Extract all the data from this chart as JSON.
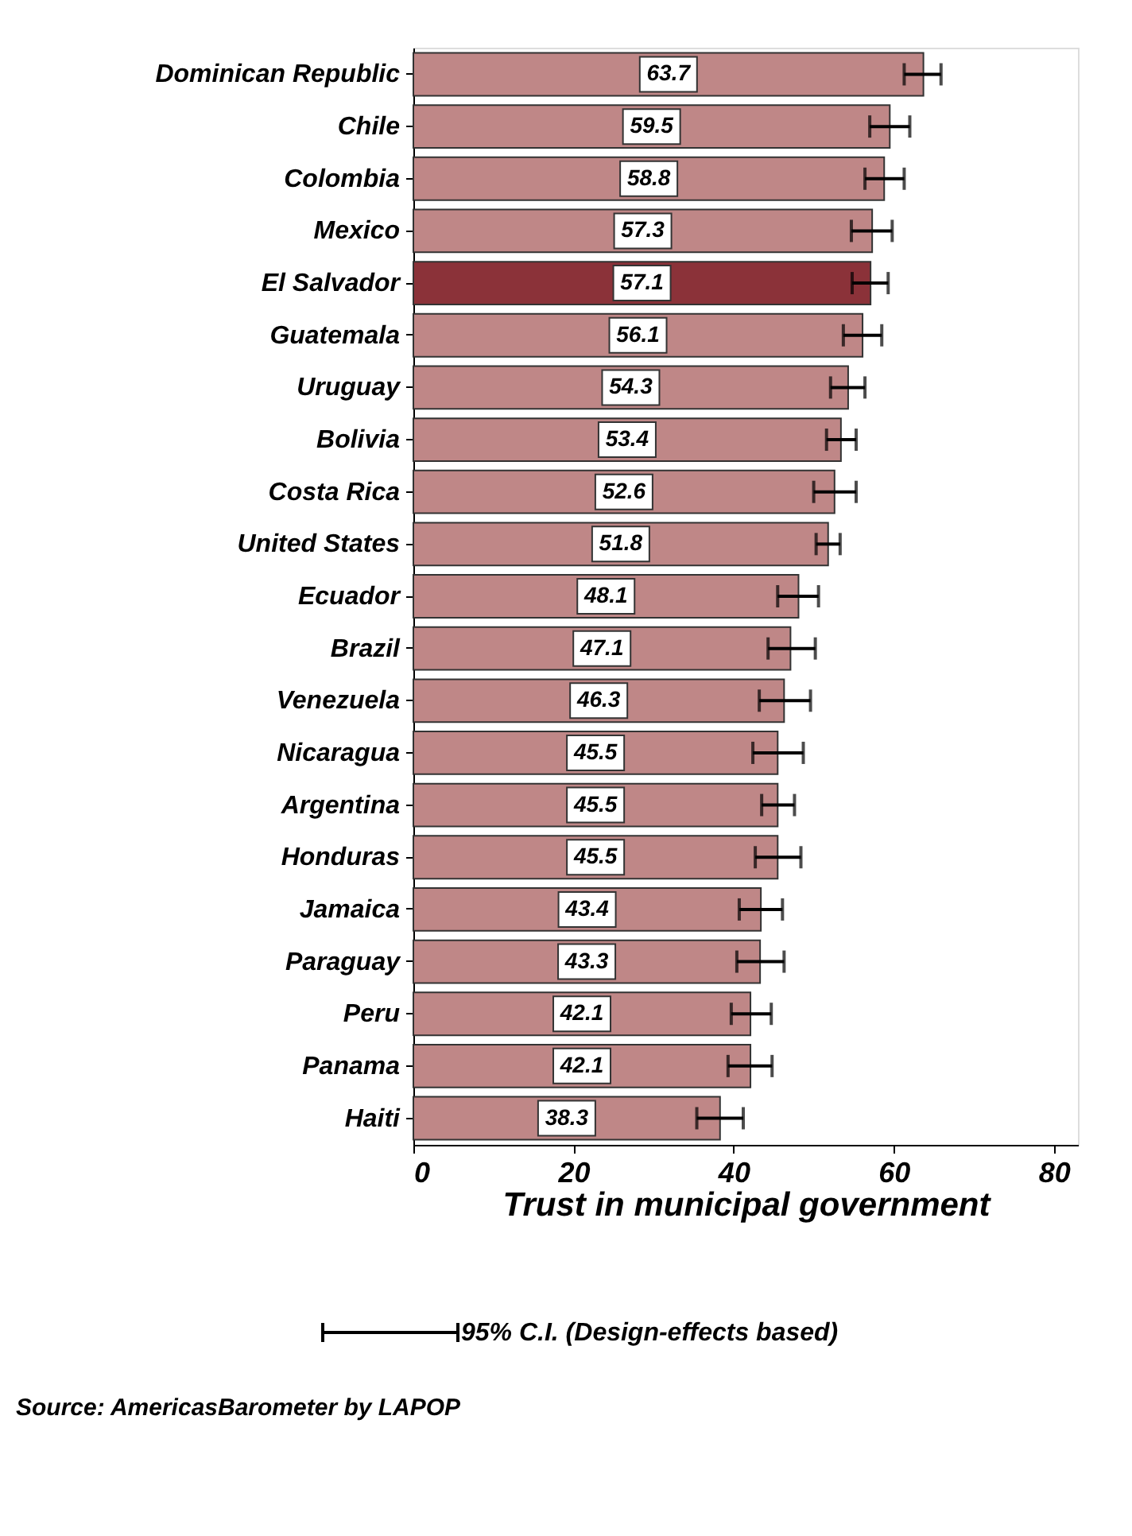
{
  "chart_data": {
    "type": "bar",
    "orientation": "horizontal",
    "xlabel": "Trust in municipal government",
    "categories": [
      "Dominican Republic",
      "Chile",
      "Colombia",
      "Mexico",
      "El Salvador",
      "Guatemala",
      "Uruguay",
      "Bolivia",
      "Costa Rica",
      "United States",
      "Ecuador",
      "Brazil",
      "Venezuela",
      "Nicaragua",
      "Argentina",
      "Honduras",
      "Jamaica",
      "Paraguay",
      "Peru",
      "Panama",
      "Haiti"
    ],
    "values": [
      63.7,
      59.5,
      58.8,
      57.3,
      57.1,
      56.1,
      54.3,
      53.4,
      52.6,
      51.8,
      48.1,
      47.1,
      46.3,
      45.5,
      45.5,
      45.5,
      43.4,
      43.3,
      42.1,
      42.1,
      38.3
    ],
    "errors": [
      [
        61.3,
        65.9
      ],
      [
        57.0,
        62.0
      ],
      [
        56.4,
        61.3
      ],
      [
        54.7,
        59.8
      ],
      [
        54.8,
        59.3
      ],
      [
        53.7,
        58.5
      ],
      [
        52.1,
        56.4
      ],
      [
        51.6,
        55.3
      ],
      [
        50.0,
        55.3
      ],
      [
        50.3,
        53.3
      ],
      [
        45.5,
        50.6
      ],
      [
        44.3,
        50.2
      ],
      [
        43.2,
        49.6
      ],
      [
        42.4,
        48.7
      ],
      [
        43.5,
        47.6
      ],
      [
        42.7,
        48.4
      ],
      [
        40.7,
        46.1
      ],
      [
        40.4,
        46.3
      ],
      [
        39.7,
        44.7
      ],
      [
        39.3,
        44.8
      ],
      [
        35.4,
        41.2
      ]
    ],
    "colors": [
      "#bf8787",
      "#bf8787",
      "#bf8787",
      "#bf8787",
      "#8b3239",
      "#bf8787",
      "#bf8787",
      "#bf8787",
      "#bf8787",
      "#bf8787",
      "#bf8787",
      "#bf8787",
      "#bf8787",
      "#bf8787",
      "#bf8787",
      "#bf8787",
      "#bf8787",
      "#bf8787",
      "#bf8787",
      "#bf8787",
      "#bf8787"
    ],
    "data_labels": true,
    "xlim": [
      0,
      83
    ],
    "xticks": [
      0,
      20,
      40,
      60,
      80
    ],
    "grid": false,
    "annotations": [
      "95% C.I. (Design-effects based)",
      "Source: AmericasBarometer by LAPOP"
    ]
  }
}
